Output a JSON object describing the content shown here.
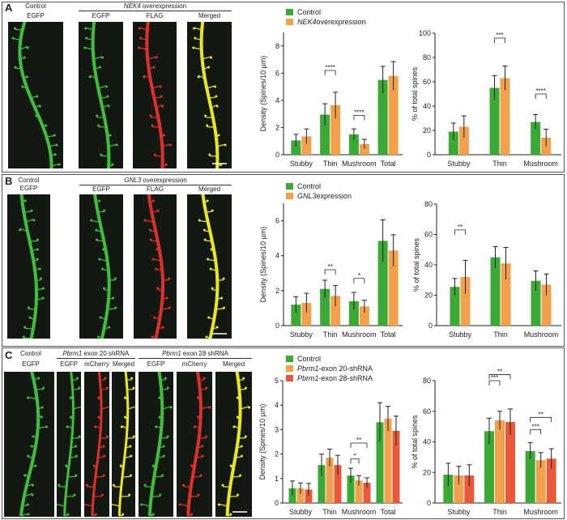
{
  "colors": {
    "control": "#3aa935",
    "treat1": "#f2a04c",
    "treat2": "#e8583a",
    "green_channel": "#3fbf3a",
    "red_channel": "#e0302a",
    "merged_channel": "#e8e81e"
  },
  "panels": [
    {
      "letter": "A",
      "headers": [
        {
          "top": "Control",
          "label": "EGFP"
        },
        {
          "group_gene": "NEK4",
          "group_rest": " overexpression",
          "labels": [
            "EGFP",
            "FLAG",
            "Merged"
          ]
        }
      ],
      "images": [
        {
          "channel": "green"
        },
        {
          "channel": "green"
        },
        {
          "channel": "red"
        },
        {
          "channel": "merged"
        }
      ]
    },
    {
      "letter": "B",
      "headers": [
        {
          "top": "Control",
          "label": "EGFP"
        },
        {
          "group_gene": "GNL3",
          "group_rest": " overexpression",
          "labels": [
            "EGFP",
            "FLAG",
            "Merged"
          ]
        }
      ],
      "images": [
        {
          "channel": "green"
        },
        {
          "channel": "green"
        },
        {
          "channel": "red"
        },
        {
          "channel": "merged"
        }
      ]
    },
    {
      "letter": "C",
      "headers": [
        {
          "top": "Control",
          "label": "EGFP"
        },
        {
          "group_gene": "Pbrm1",
          "group_rest": " exon 20 shRNA",
          "labels": [
            "EGFP",
            "mCherry",
            "Merged"
          ]
        },
        {
          "group_gene": "Pbrm1",
          "group_rest": " exon 28 shRNA",
          "labels": [
            "EGFP",
            "mCherry",
            "Merged"
          ]
        }
      ],
      "images": [
        {
          "channel": "green"
        },
        {
          "channel": "green"
        },
        {
          "channel": "red"
        },
        {
          "channel": "merged"
        },
        {
          "channel": "green"
        },
        {
          "channel": "red"
        },
        {
          "channel": "merged"
        }
      ]
    }
  ],
  "chart_data": [
    {
      "type": "bar",
      "panel": "A",
      "categories": [
        "Stubby",
        "Thin",
        "Mushroom",
        "Total"
      ],
      "ylabel": "Density (Spines/10 µm)",
      "ylim": [
        0,
        9
      ],
      "yticks": [
        0,
        2,
        4,
        6,
        8
      ],
      "legend": "top-left",
      "series": [
        {
          "name": "Control",
          "values": [
            1.05,
            2.95,
            1.5,
            5.5
          ],
          "errors": [
            0.45,
            0.8,
            0.4,
            1.0
          ]
        },
        {
          "name": "NEK4 overexpression",
          "italic_prefix": "NEK4",
          "values": [
            1.35,
            3.65,
            0.78,
            5.8
          ],
          "errors": [
            0.55,
            0.95,
            0.35,
            1.05
          ]
        }
      ],
      "significance": [
        {
          "category": "Thin",
          "from": 0,
          "to": 1,
          "y": 6.2,
          "label": "****"
        },
        {
          "category": "Mushroom",
          "from": 0,
          "to": 1,
          "y": 2.9,
          "label": "****"
        }
      ]
    },
    {
      "type": "bar",
      "panel": "A",
      "categories": [
        "Stubby",
        "Thin",
        "Mushroom"
      ],
      "ylabel": "% of total spines",
      "ylim": [
        0,
        100
      ],
      "yticks": [
        0,
        20,
        40,
        60,
        80,
        100
      ],
      "series": [
        {
          "name": "Control",
          "values": [
            19,
            55,
            27
          ],
          "errors": [
            7,
            10,
            6
          ]
        },
        {
          "name": "NEK4 overexpression",
          "values": [
            23,
            63,
            14
          ],
          "errors": [
            9,
            10,
            7
          ]
        }
      ],
      "significance": [
        {
          "category": "Thin",
          "from": 0,
          "to": 1,
          "y": 96,
          "label": "***"
        },
        {
          "category": "Mushroom",
          "from": 0,
          "to": 1,
          "y": 50,
          "label": "****"
        }
      ]
    },
    {
      "type": "bar",
      "panel": "B",
      "categories": [
        "Stubby",
        "Thin",
        "Mushroom",
        "Total"
      ],
      "ylabel": "Density (Spines/10 µm)",
      "ylim": [
        0,
        7
      ],
      "yticks": [
        0,
        2,
        4,
        6
      ],
      "legend": "top-left",
      "series": [
        {
          "name": "Control",
          "values": [
            1.2,
            2.1,
            1.4,
            4.85
          ],
          "errors": [
            0.45,
            0.5,
            0.5,
            1.2
          ]
        },
        {
          "name": "GNL3 expression",
          "italic_prefix": "GNL3",
          "values": [
            1.3,
            1.7,
            1.1,
            4.3
          ],
          "errors": [
            0.55,
            0.6,
            0.35,
            0.9
          ]
        }
      ],
      "significance": [
        {
          "category": "Thin",
          "from": 0,
          "to": 1,
          "y": 3.2,
          "label": "**"
        },
        {
          "category": "Mushroom",
          "from": 0,
          "to": 1,
          "y": 2.7,
          "label": "*"
        }
      ]
    },
    {
      "type": "bar",
      "panel": "B",
      "categories": [
        "Stubby",
        "Thin",
        "Mushroom"
      ],
      "ylabel": "% of total spines",
      "ylim": [
        0,
        80
      ],
      "yticks": [
        0,
        20,
        40,
        60,
        80
      ],
      "series": [
        {
          "name": "Control",
          "values": [
            25.5,
            45,
            29.5
          ],
          "errors": [
            5.5,
            7,
            6.5
          ]
        },
        {
          "name": "GNL3 expression",
          "values": [
            32,
            41,
            27
          ],
          "errors": [
            11,
            10.5,
            7
          ]
        }
      ],
      "significance": [
        {
          "category": "Stubby",
          "from": 0,
          "to": 1,
          "y": 63,
          "label": "**"
        }
      ]
    },
    {
      "type": "bar",
      "panel": "C",
      "categories": [
        "Stubby",
        "Thin",
        "Mushroom",
        "Total"
      ],
      "ylabel": "Density (Spines/10 µm)",
      "ylim": [
        0,
        5
      ],
      "yticks": [
        0,
        1,
        2,
        3,
        4,
        5
      ],
      "legend": "top-left",
      "series": [
        {
          "name": "Control",
          "values": [
            0.6,
            1.55,
            1.12,
            3.3
          ],
          "errors": [
            0.3,
            0.45,
            0.3,
            0.8
          ]
        },
        {
          "name": "Pbrm1-exon 20-shRNA",
          "italic_prefix": "Pbrm1",
          "values": [
            0.6,
            1.85,
            0.92,
            3.45
          ],
          "errors": [
            0.22,
            0.35,
            0.2,
            0.5
          ]
        },
        {
          "name": "Pbrm1-exon 28-shRNA",
          "italic_prefix": "Pbrm1",
          "values": [
            0.55,
            1.55,
            0.83,
            2.95
          ],
          "errors": [
            0.25,
            0.4,
            0.2,
            0.6
          ]
        }
      ],
      "significance": [
        {
          "category": "Mushroom",
          "from": 0,
          "to": 1,
          "y": 1.8,
          "label": "*"
        },
        {
          "category": "Mushroom",
          "from": 0,
          "to": 2,
          "y": 2.45,
          "label": "**"
        }
      ]
    },
    {
      "type": "bar",
      "panel": "C",
      "categories": [
        "Stubby",
        "Thin",
        "Mushroom"
      ],
      "ylabel": "% of total spines",
      "ylim": [
        0,
        80
      ],
      "yticks": [
        0,
        20,
        40,
        60,
        80
      ],
      "series": [
        {
          "name": "Control",
          "values": [
            18.5,
            47,
            34
          ],
          "errors": [
            7.5,
            8.5,
            5.5
          ]
        },
        {
          "name": "Pbrm1-exon 20-shRNA",
          "values": [
            18,
            54,
            28
          ],
          "errors": [
            6,
            6,
            5
          ]
        },
        {
          "name": "Pbrm1-exon 28-shRNA",
          "values": [
            18,
            53,
            29
          ],
          "errors": [
            7,
            8.5,
            6.5
          ]
        }
      ],
      "significance": [
        {
          "category": "Thin",
          "from": 0,
          "to": 1,
          "y": 80,
          "label": "***"
        },
        {
          "category": "Thin",
          "from": 0,
          "to": 2,
          "y": 84,
          "label": "**"
        },
        {
          "category": "Mushroom",
          "from": 0,
          "to": 1,
          "y": 48,
          "label": "***"
        },
        {
          "category": "Mushroom",
          "from": 0,
          "to": 2,
          "y": 56,
          "label": "**"
        }
      ]
    }
  ]
}
